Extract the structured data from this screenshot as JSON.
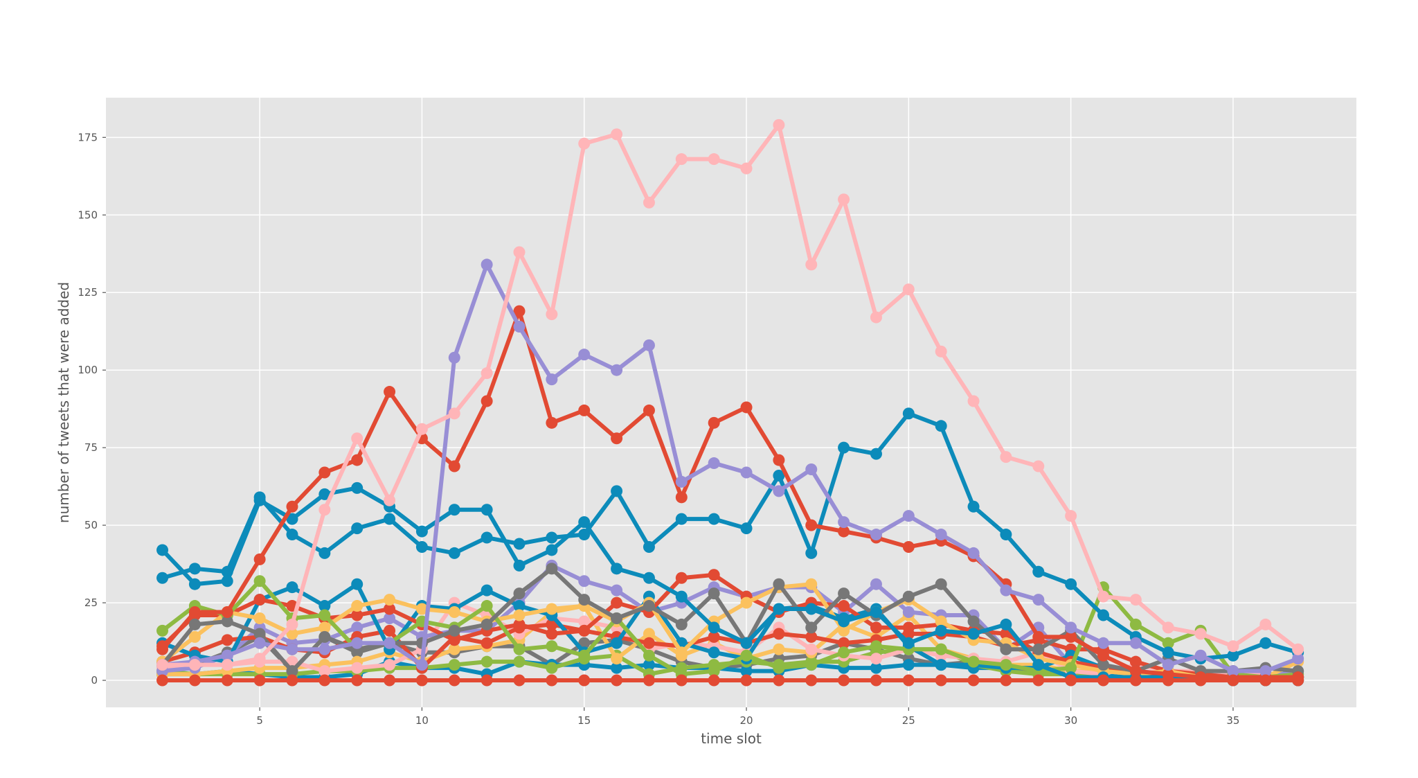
{
  "chart_data": {
    "type": "line",
    "title": "",
    "xlabel": "time slot",
    "ylabel": "number of tweets that were added",
    "xlim": [
      0.26,
      38.8
    ],
    "ylim": [
      -8.7,
      187.8
    ],
    "xticks": [
      5,
      10,
      15,
      20,
      25,
      30,
      35
    ],
    "yticks": [
      0,
      25,
      50,
      75,
      100,
      125,
      150,
      175
    ],
    "grid": true,
    "legend": "none",
    "background": "#E5E5E5",
    "x": [
      2,
      3,
      4,
      5,
      6,
      7,
      8,
      9,
      10,
      11,
      12,
      13,
      14,
      15,
      16,
      17,
      18,
      19,
      20,
      21,
      22,
      23,
      24,
      25,
      26,
      27,
      28,
      29,
      30,
      31,
      32,
      33,
      34,
      35,
      36,
      37
    ],
    "series": [
      {
        "color": "#777777",
        "values": [
          2,
          5,
          9,
          14,
          3,
          14,
          9,
          12,
          9,
          9,
          11,
          11,
          5,
          12,
          13,
          10,
          6,
          4,
          5,
          7,
          8,
          12,
          10,
          7,
          5,
          6,
          3,
          3,
          3,
          1,
          1,
          1,
          1,
          1,
          1,
          1
        ]
      },
      {
        "color": "#0C8BBA",
        "values": [
          2,
          2,
          3,
          2,
          1,
          1,
          2,
          6,
          4,
          4,
          2,
          6,
          5,
          5,
          4,
          5,
          4,
          4,
          3,
          3,
          5,
          4,
          4,
          5,
          5,
          4,
          4,
          4,
          3,
          2,
          1,
          1,
          1,
          0,
          0,
          0
        ]
      },
      {
        "color": "#8EBA42",
        "values": [
          3,
          2,
          2,
          2,
          2,
          3,
          3,
          4,
          4,
          5,
          6,
          6,
          4,
          7,
          8,
          2,
          4,
          5,
          6,
          5,
          6,
          6,
          9,
          10,
          10,
          5,
          3,
          2,
          2,
          1,
          1,
          1,
          1,
          0,
          0,
          1
        ]
      },
      {
        "color": "#FBC15E",
        "values": [
          2,
          2,
          3,
          4,
          4,
          5,
          6,
          9,
          6,
          10,
          11,
          13,
          22,
          24,
          7,
          15,
          8,
          12,
          7,
          10,
          9,
          18,
          14,
          21,
          10,
          7,
          5,
          5,
          3,
          3,
          2,
          2,
          2,
          2,
          2,
          2
        ]
      },
      {
        "color": "#FFB5B8",
        "values": [
          4,
          5,
          5,
          6,
          6,
          3,
          4,
          5,
          10,
          25,
          21,
          15,
          20,
          19,
          17,
          10,
          12,
          11,
          9,
          17,
          10,
          8,
          7,
          10,
          8,
          7,
          6,
          9,
          3,
          2,
          5,
          3,
          3,
          2,
          2,
          1
        ]
      },
      {
        "color": "#988ED5",
        "values": [
          3,
          4,
          8,
          17,
          12,
          13,
          17,
          20,
          14,
          16,
          16,
          25,
          37,
          32,
          29,
          22,
          25,
          30,
          27,
          30,
          30,
          22,
          31,
          22,
          21,
          21,
          10,
          17,
          5,
          4,
          3,
          2,
          2,
          1,
          1,
          3
        ]
      },
      {
        "color": "#E24A33",
        "values": [
          6,
          9,
          13,
          14,
          10,
          9,
          14,
          16,
          4,
          14,
          12,
          17,
          18,
          16,
          14,
          12,
          11,
          14,
          12,
          15,
          14,
          12,
          13,
          15,
          15,
          14,
          11,
          13,
          10,
          10,
          6,
          3,
          2,
          1,
          1,
          0
        ]
      },
      {
        "color": "#0C8BBA",
        "values": [
          12,
          8,
          6,
          26,
          30,
          24,
          31,
          10,
          24,
          23,
          29,
          24,
          21,
          9,
          12,
          27,
          12,
          9,
          7,
          23,
          24,
          20,
          23,
          11,
          5,
          5,
          4,
          4,
          8,
          4,
          1,
          1,
          1,
          0,
          0,
          0
        ]
      },
      {
        "color": "#E24A33",
        "values": [
          11,
          21,
          21,
          26,
          24,
          20,
          21,
          23,
          18,
          13,
          16,
          18,
          15,
          16,
          25,
          22,
          33,
          34,
          27,
          22,
          25,
          24,
          17,
          17,
          18,
          16,
          15,
          9,
          6,
          4,
          2,
          2,
          1,
          1,
          1,
          1
        ]
      },
      {
        "color": "#FBC15E",
        "values": [
          6,
          14,
          22,
          20,
          15,
          17,
          24,
          26,
          23,
          22,
          19,
          21,
          23,
          24,
          19,
          25,
          9,
          19,
          25,
          30,
          31,
          16,
          22,
          26,
          19,
          13,
          12,
          7,
          5,
          3,
          2,
          3,
          1,
          1,
          1,
          6
        ]
      },
      {
        "color": "#8EBA42",
        "values": [
          16,
          24,
          21,
          32,
          20,
          21,
          10,
          12,
          19,
          17,
          24,
          10,
          11,
          8,
          20,
          8,
          2,
          3,
          8,
          4,
          5,
          9,
          11,
          10,
          10,
          6,
          5,
          3,
          4,
          30,
          18,
          12,
          16,
          2,
          1,
          2
        ]
      },
      {
        "color": "#777777",
        "values": [
          5,
          18,
          19,
          15,
          3,
          14,
          10,
          12,
          12,
          16,
          18,
          28,
          36,
          26,
          20,
          24,
          18,
          28,
          12,
          31,
          17,
          28,
          21,
          27,
          31,
          19,
          10,
          10,
          16,
          5,
          3,
          7,
          3,
          3,
          4,
          3
        ]
      },
      {
        "color": "#0C8BBA",
        "values": [
          33,
          36,
          35,
          59,
          47,
          41,
          49,
          52,
          43,
          41,
          46,
          44,
          46,
          47,
          61,
          43,
          52,
          52,
          49,
          66,
          41,
          75,
          73,
          86,
          82,
          56,
          47,
          35,
          31,
          21,
          14,
          9,
          7,
          8,
          12,
          9
        ]
      },
      {
        "color": "#0C8BBA",
        "values": [
          42,
          31,
          32,
          58,
          52,
          60,
          62,
          56,
          48,
          55,
          55,
          37,
          42,
          51,
          36,
          33,
          27,
          17,
          12,
          23,
          23,
          19,
          22,
          12,
          16,
          15,
          18,
          5,
          1,
          1,
          1,
          1,
          1,
          1,
          1,
          1
        ]
      },
      {
        "color": "#E24A33",
        "values": [
          10,
          22,
          22,
          39,
          56,
          67,
          71,
          93,
          78,
          69,
          90,
          119,
          83,
          87,
          78,
          87,
          59,
          83,
          88,
          71,
          50,
          48,
          46,
          43,
          45,
          40,
          31,
          14,
          14,
          8,
          3,
          2,
          1,
          1,
          1,
          1
        ]
      },
      {
        "color": "#988ED5",
        "values": [
          5,
          6,
          8,
          12,
          10,
          10,
          12,
          12,
          5,
          104,
          134,
          114,
          97,
          105,
          100,
          108,
          64,
          70,
          67,
          61,
          68,
          51,
          47,
          53,
          47,
          41,
          29,
          26,
          17,
          12,
          12,
          5,
          8,
          3,
          3,
          7
        ]
      },
      {
        "color": "#FFB5B8",
        "values": [
          5,
          5,
          5,
          7,
          18,
          55,
          78,
          58,
          81,
          86,
          99,
          138,
          118,
          173,
          176,
          154,
          168,
          168,
          165,
          179,
          134,
          155,
          117,
          126,
          106,
          90,
          72,
          69,
          53,
          27,
          26,
          17,
          15,
          11,
          18,
          10
        ]
      },
      {
        "color": "#E24A33",
        "values": [
          0,
          0,
          0,
          0,
          0,
          0,
          0,
          0,
          0,
          0,
          0,
          0,
          0,
          0,
          0,
          0,
          0,
          0,
          0,
          0,
          0,
          0,
          0,
          0,
          0,
          0,
          0,
          0,
          0,
          0,
          0,
          0,
          0,
          0,
          0,
          0
        ]
      }
    ]
  }
}
